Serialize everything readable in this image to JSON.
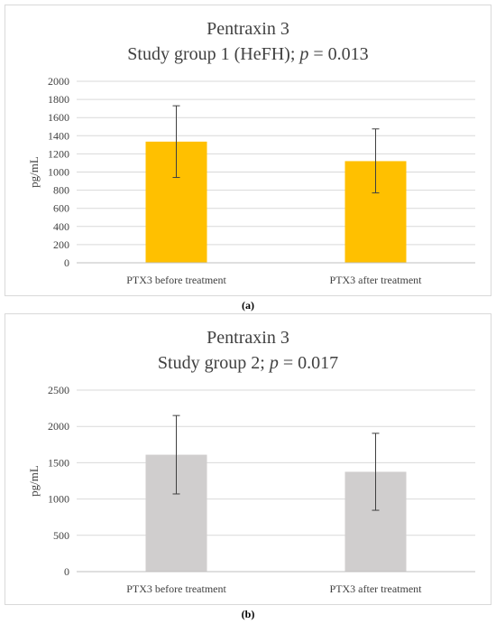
{
  "chart_data": [
    {
      "type": "bar",
      "title": "Pentraxin 3",
      "subtitle": "Study group 1 (HeFH); p = 0.013",
      "subtitle_parts": {
        "prefix": "Study group 1 (HeFH); ",
        "italic": "p",
        "suffix": " = 0.013"
      },
      "xlabel": "",
      "ylabel": "pg/mL",
      "ylim": [
        0,
        2000
      ],
      "yticks": [
        0,
        200,
        400,
        600,
        800,
        1000,
        1200,
        1400,
        1600,
        1800,
        2000
      ],
      "categories": [
        "PTX3 before treatment",
        "PTX3 after treatment"
      ],
      "values": [
        1335,
        1120
      ],
      "error_low": [
        940,
        770
      ],
      "error_high": [
        1730,
        1475
      ],
      "bar_color": "#ffc000",
      "grid": true,
      "caption": "(a)"
    },
    {
      "type": "bar",
      "title": "Pentraxin 3",
      "subtitle": "Study group 2; p = 0.017",
      "subtitle_parts": {
        "prefix": "Study group 2; ",
        "italic": "p",
        "suffix": " = 0.017"
      },
      "xlabel": "",
      "ylabel": "pg/mL",
      "ylim": [
        0,
        2500
      ],
      "yticks": [
        0,
        500,
        1000,
        1500,
        2000,
        2500
      ],
      "categories": [
        "PTX3 before treatment",
        "PTX3 after treatment"
      ],
      "values": [
        1610,
        1375
      ],
      "error_low": [
        1070,
        845
      ],
      "error_high": [
        2150,
        1905
      ],
      "bar_color": "#d0cece",
      "grid": true,
      "caption": "(b)"
    }
  ]
}
